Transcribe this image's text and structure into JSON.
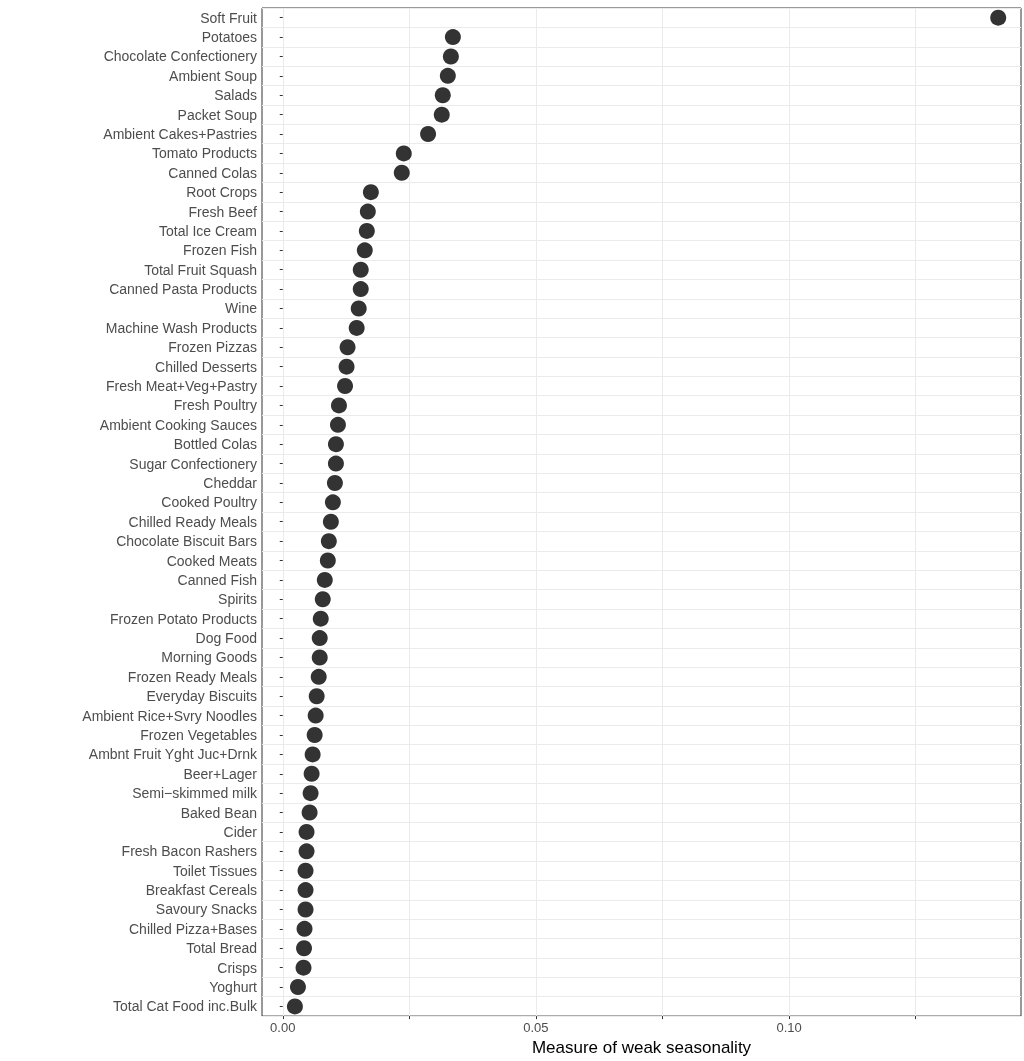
{
  "chart_data": {
    "type": "scatter",
    "orientation": "horizontal",
    "xlabel": "Measure of weak seasonality",
    "categories": [
      "Soft Fruit",
      "Potatoes",
      "Chocolate Confectionery",
      "Ambient Soup",
      "Salads",
      "Packet Soup",
      "Ambient Cakes+Pastries",
      "Tomato Products",
      "Canned Colas",
      "Root Crops",
      "Fresh Beef",
      "Total Ice Cream",
      "Frozen Fish",
      "Total Fruit Squash",
      "Canned Pasta Products",
      "Wine",
      "Machine Wash Products",
      "Frozen Pizzas",
      "Chilled Desserts",
      "Fresh Meat+Veg+Pastry",
      "Fresh Poultry",
      "Ambient Cooking Sauces",
      "Bottled Colas",
      "Sugar Confectionery",
      "Cheddar",
      "Cooked Poultry",
      "Chilled Ready Meals",
      "Chocolate Biscuit Bars",
      "Cooked Meats",
      "Canned Fish",
      "Spirits",
      "Frozen Potato Products",
      "Dog Food",
      "Morning Goods",
      "Frozen Ready Meals",
      "Everyday Biscuits",
      "Ambient Rice+Svry Noodles",
      "Frozen Vegetables",
      "Ambnt Fruit Yght Juc+Drnk",
      "Beer+Lager",
      "Semi−skimmed milk",
      "Baked Bean",
      "Cider",
      "Fresh Bacon Rashers",
      "Toilet Tissues",
      "Breakfast Cereals",
      "Savoury Snacks",
      "Chilled Pizza+Bases",
      "Total Bread",
      "Crisps",
      "Yoghurt",
      "Total Cat Food inc.Bulk"
    ],
    "values": [
      0.1413,
      0.0336,
      0.0332,
      0.0326,
      0.0316,
      0.0314,
      0.0287,
      0.0239,
      0.0235,
      0.0174,
      0.0168,
      0.0166,
      0.0162,
      0.0154,
      0.0154,
      0.015,
      0.0146,
      0.0128,
      0.0126,
      0.0123,
      0.0111,
      0.0109,
      0.0105,
      0.0105,
      0.0103,
      0.0099,
      0.0095,
      0.0091,
      0.0089,
      0.0083,
      0.0079,
      0.0075,
      0.0073,
      0.0073,
      0.0071,
      0.0067,
      0.0065,
      0.0063,
      0.0059,
      0.0057,
      0.0055,
      0.0053,
      0.0047,
      0.0047,
      0.0045,
      0.0045,
      0.0045,
      0.0043,
      0.0042,
      0.0041,
      0.003,
      0.0024
    ],
    "color": "#000000",
    "marker": "circle",
    "grid": true,
    "xlim": [
      -0.0041,
      0.1458
    ],
    "xticks": [
      {
        "value": 0,
        "label": "0.00"
      },
      {
        "value": 0.025,
        "label": null
      },
      {
        "value": 0.05,
        "label": "0.05"
      },
      {
        "value": 0.075,
        "label": null
      },
      {
        "value": 0.1,
        "label": "0.10"
      },
      {
        "value": 0.125,
        "label": null
      }
    ]
  }
}
